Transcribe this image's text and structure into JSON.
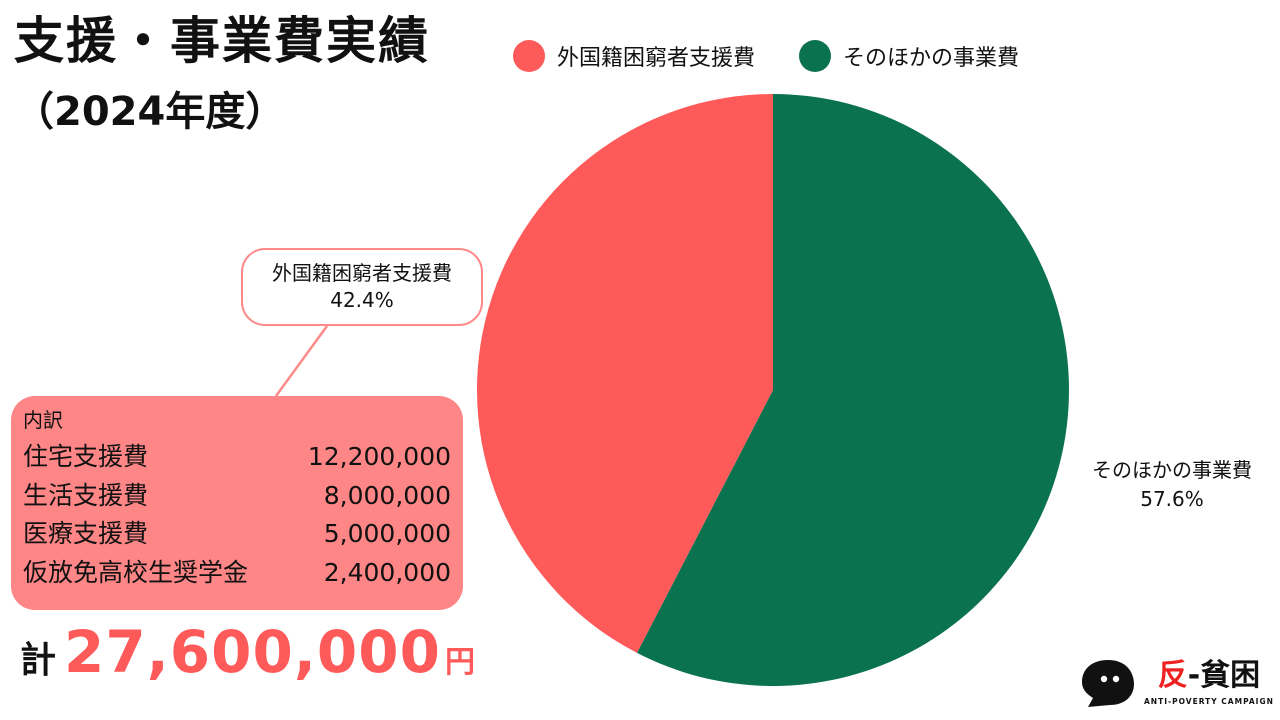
{
  "header": {
    "title": "支援・事業費実績",
    "subtitle": "（2024年度）"
  },
  "legend": [
    {
      "label": "外国籍困窮者支援費",
      "color": "#ff5a5a"
    },
    {
      "label": "そのほかの事業費",
      "color": "#0b7250"
    }
  ],
  "callout": {
    "red_label": "外国籍困窮者支援費",
    "red_percent": "42.4%",
    "green_label": "そのほかの事業費",
    "green_percent": "57.6%"
  },
  "breakdown": {
    "title": "内訳",
    "rows": [
      {
        "label": "住宅支援費",
        "value": "12,200,000"
      },
      {
        "label": "生活支援費",
        "value": "8,000,000"
      },
      {
        "label": "医療支援費",
        "value": "5,000,000"
      },
      {
        "label": "仮放免高校生奨学金",
        "value": "2,400,000"
      }
    ]
  },
  "total": {
    "label": "計",
    "value": "27,600,000",
    "unit": "円"
  },
  "logo": {
    "main_accent": "反",
    "main_rest": "-貧困",
    "sub": "ANTI-POVERTY CAMPAIGN"
  },
  "chart_data": {
    "type": "pie",
    "title": "支援・事業費実績",
    "categories": [
      "外国籍困窮者支援費",
      "そのほかの事業費"
    ],
    "values": [
      42.4,
      57.6
    ],
    "colors": [
      "#ff5a5a",
      "#0b7250"
    ],
    "start": "12 o'clock",
    "direction": "counterclockwise for 外国籍困窮者支援費"
  }
}
